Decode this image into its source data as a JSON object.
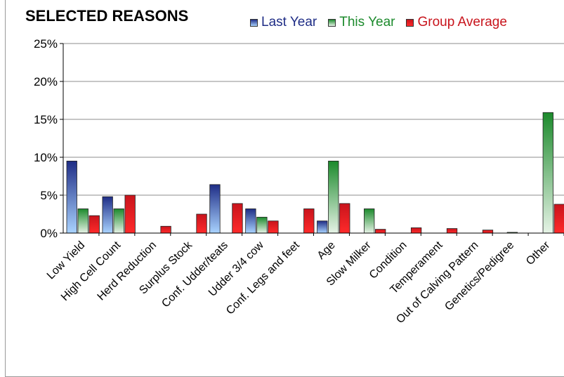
{
  "chart_data": {
    "type": "bar",
    "title": "SELECTED REASONS",
    "categories": [
      "Low Yield",
      "High Cell Count",
      "Herd Reduction",
      "Surplus Stock",
      "Conf. Udder/teats",
      "Udder 3/4 cow",
      "Conf. Legs and feet",
      "Age",
      "Slow Milker",
      "Condition",
      "Temperament",
      "Out of Calving Pattern",
      "Genetics/Pedigree",
      "Other"
    ],
    "series": [
      {
        "name": "Last Year",
        "color": "#1f2d86",
        "values": [
          9.5,
          4.8,
          0,
          0,
          6.4,
          3.2,
          0,
          1.6,
          0,
          0,
          0,
          0,
          0,
          0
        ]
      },
      {
        "name": "This Year",
        "color": "#1c8a2c",
        "values": [
          3.2,
          3.2,
          0,
          0,
          0,
          2.1,
          0,
          9.5,
          3.2,
          0,
          0,
          0,
          0.1,
          15.9
        ]
      },
      {
        "name": "Group Average",
        "color": "#c8141c",
        "values": [
          2.3,
          5.0,
          0.9,
          2.5,
          3.9,
          1.6,
          3.2,
          3.9,
          0.5,
          0.7,
          0.6,
          0.4,
          0,
          3.8
        ]
      }
    ],
    "yticks": [
      "0%",
      "5%",
      "10%",
      "15%",
      "20%",
      "25%"
    ],
    "ylim": [
      0,
      25
    ],
    "xlabel": "",
    "ylabel": "",
    "grid": true,
    "legend_position": "top-right"
  }
}
